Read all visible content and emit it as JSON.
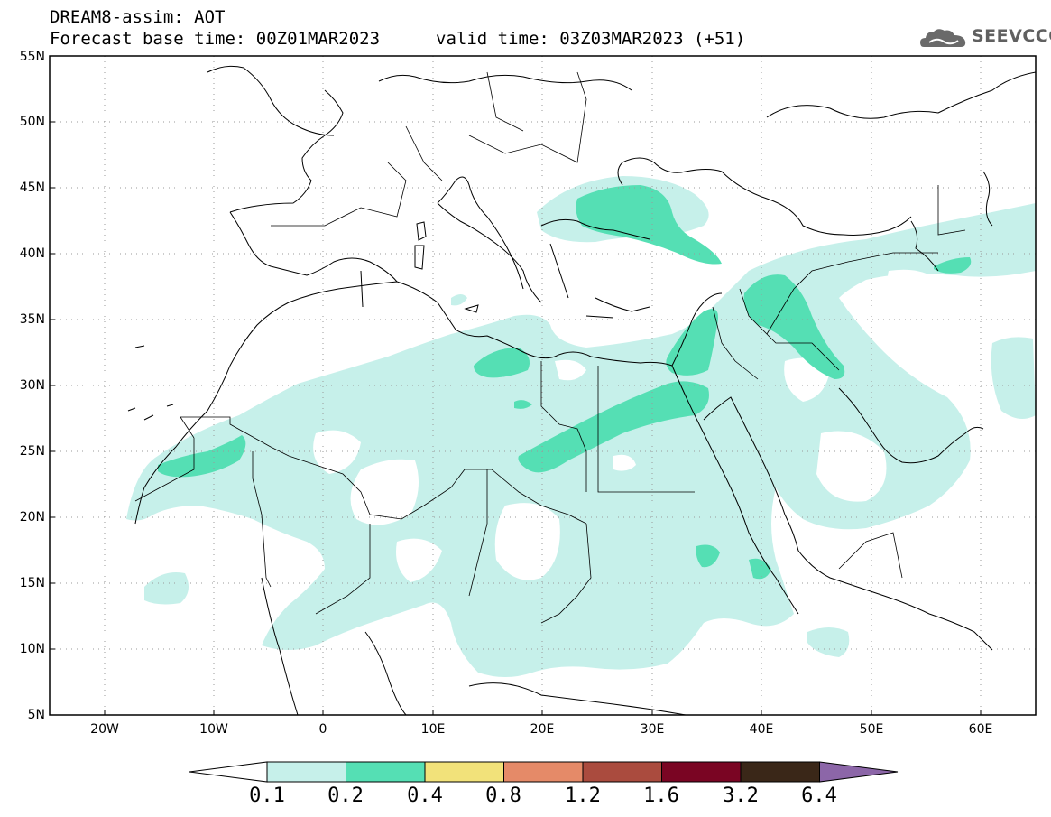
{
  "header": {
    "title": "DREAM8-assim: AOT",
    "base_time": "Forecast base time: 00Z01MAR2023",
    "valid_time": "valid time: 03Z03MAR2023 (+51)",
    "logo_text": "SEEVCCC"
  },
  "map": {
    "variable": "AOT",
    "model": "DREAM8-assim",
    "projection": "lat-lon",
    "lon_range": [
      -25,
      65
    ],
    "lat_range": [
      5,
      55
    ],
    "lat_labels": [
      "55N",
      "50N",
      "45N",
      "40N",
      "35N",
      "30N",
      "25N",
      "20N",
      "15N",
      "10N",
      "5N"
    ],
    "lon_labels": [
      "20W",
      "10W",
      "0",
      "10E",
      "20E",
      "30E",
      "40E",
      "50E",
      "60E"
    ]
  },
  "colorbar": {
    "labels": [
      "0.1",
      "0.2",
      "0.4",
      "0.8",
      "1.2",
      "1.6",
      "3.2",
      "6.4"
    ],
    "colors": [
      "#ffffff",
      "#c6f0ea",
      "#55dfb4",
      "#f2e27a",
      "#e58a68",
      "#aa4b3e",
      "#7a0523",
      "#3a2718",
      "#8c66a8"
    ]
  }
}
